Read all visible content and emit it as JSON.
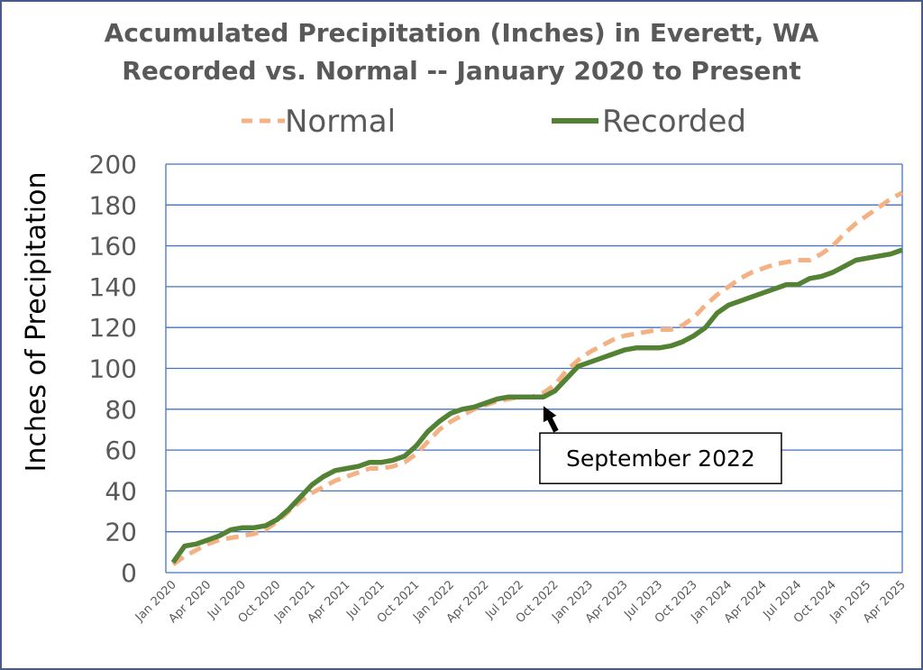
{
  "chart_data": {
    "type": "line",
    "title": "Accumulated Precipitation (Inches) in Everett, WA",
    "subtitle": "Recorded vs. Normal --  January 2020 to Present",
    "ylabel": "Inches of Precipitation",
    "xlabel": "",
    "ylim": [
      0,
      200
    ],
    "yticks": [
      "0",
      "20",
      "40",
      "60",
      "80",
      "100",
      "120",
      "140",
      "160",
      "180",
      "200"
    ],
    "grid": true,
    "legend_position": "top",
    "x": [
      "Jan 2020",
      "Feb 2020",
      "Mar 2020",
      "Apr 2020",
      "May 2020",
      "Jun 2020",
      "Jul 2020",
      "Aug 2020",
      "Sep 2020",
      "Oct 2020",
      "Nov 2020",
      "Dec 2020",
      "Jan 2021",
      "Feb 2021",
      "Mar 2021",
      "Apr 2021",
      "May 2021",
      "Jun 2021",
      "Jul 2021",
      "Aug 2021",
      "Sep 2021",
      "Oct 2021",
      "Nov 2021",
      "Dec 2021",
      "Jan 2022",
      "Feb 2022",
      "Mar 2022",
      "Apr 2022",
      "May 2022",
      "Jun 2022",
      "Jul 2022",
      "Aug 2022",
      "Sep 2022",
      "Oct 2022",
      "Nov 2022",
      "Dec 2022",
      "Jan 2023",
      "Feb 2023",
      "Mar 2023",
      "Apr 2023",
      "May 2023",
      "Jun 2023",
      "Jul 2023",
      "Aug 2023",
      "Sep 2023",
      "Oct 2023",
      "Nov 2023",
      "Dec 2023",
      "Jan 2024",
      "Feb 2024",
      "Mar 2024",
      "Apr 2024",
      "May 2024",
      "Jun 2024",
      "Jul 2024",
      "Aug 2024",
      "Sep 2024",
      "Oct 2024",
      "Nov 2024",
      "Dec 2024",
      "Jan 2025",
      "Feb 2025",
      "Mar 2025",
      "Apr 2025"
    ],
    "xtick_labels": [
      "Jan 2020",
      "Apr 2020",
      "Jul 2020",
      "Oct 2020",
      "Jan 2021",
      "Apr 2021",
      "Jul 2021",
      "Oct 2021",
      "Jan 2022",
      "Apr 2022",
      "Jul 2022",
      "Oct 2022",
      "Jan 2023",
      "Apr 2023",
      "Jul 2023",
      "Oct 2023",
      "Jan 2024",
      "Apr 2024",
      "Jul 2024",
      "Oct 2024",
      "Jan 2025",
      "Apr 2025"
    ],
    "series": [
      {
        "name": "Normal",
        "color": "#f4b183",
        "style": "dashed",
        "values": [
          4,
          8,
          11,
          14,
          16,
          17,
          18,
          19,
          21,
          25,
          30,
          35,
          39,
          42,
          45,
          47,
          49,
          51,
          51,
          52,
          54,
          58,
          64,
          70,
          74,
          77,
          80,
          82,
          84,
          85,
          86,
          86,
          88,
          92,
          99,
          104,
          108,
          111,
          114,
          116,
          117,
          118,
          119,
          119,
          121,
          125,
          131,
          136,
          140,
          144,
          147,
          149,
          151,
          152,
          153,
          153,
          156,
          160,
          166,
          171,
          175,
          179,
          183,
          186
        ]
      },
      {
        "name": "Recorded",
        "color": "#548235",
        "style": "solid",
        "values": [
          5,
          13,
          14,
          16,
          18,
          21,
          22,
          22,
          23,
          26,
          31,
          37,
          43,
          47,
          50,
          51,
          52,
          54,
          54,
          55,
          57,
          62,
          69,
          74,
          78,
          80,
          81,
          83,
          85,
          86,
          86,
          86,
          86,
          89,
          95,
          101,
          103,
          105,
          107,
          109,
          110,
          110,
          110,
          111,
          113,
          116,
          120,
          127,
          131,
          133,
          135,
          137,
          139,
          141,
          141,
          144,
          145,
          147,
          150,
          153,
          154,
          155,
          156,
          158
        ]
      }
    ],
    "annotations": [
      {
        "text": "September 2022",
        "x": "Sep 2022",
        "y": 86,
        "color": "#000000"
      }
    ]
  }
}
